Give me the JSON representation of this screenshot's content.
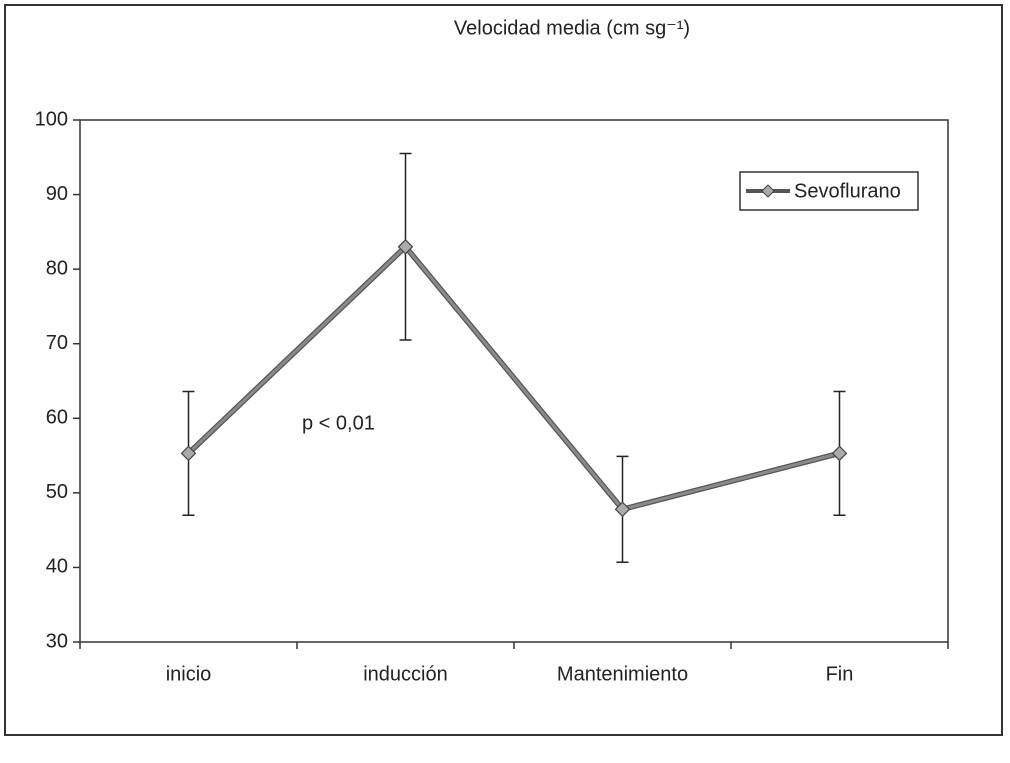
{
  "chart_data": {
    "type": "line",
    "title": "Velocidad media (cm sg⁻¹)",
    "categories": [
      "inicio",
      "inducción",
      "Mantenimiento",
      "Fin"
    ],
    "series": [
      {
        "name": "Sevoflurano",
        "color": "#8a8a8a",
        "values": [
          55.3,
          83,
          47.8,
          55.3
        ],
        "errors": [
          8.3,
          12.5,
          7.1,
          8.3
        ]
      }
    ],
    "ylim": [
      30,
      100
    ],
    "yticks": [
      30,
      40,
      50,
      60,
      70,
      80,
      90,
      100
    ],
    "annotations": [
      "p < 0,01"
    ],
    "legend": "upper right",
    "grid": false
  }
}
